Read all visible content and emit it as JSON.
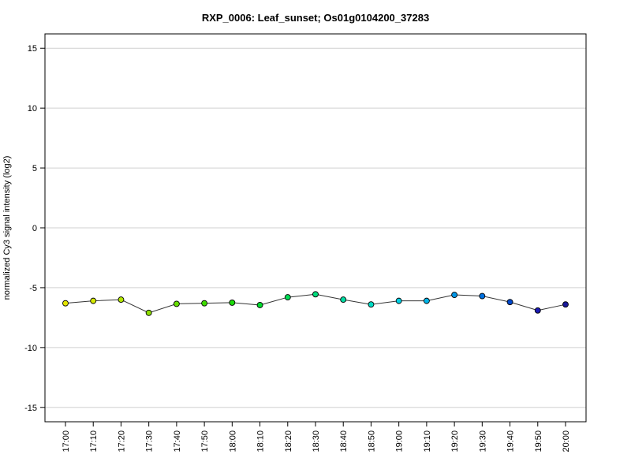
{
  "chart_data": {
    "type": "line",
    "title": "RXP_0006: Leaf_sunset; Os01g0104200_37283",
    "xlabel": "",
    "ylabel": "normalized Cy3 signal intensity (log2)",
    "ylim": [
      -16.2,
      16.2
    ],
    "yticks": [
      -15,
      -10,
      -5,
      0,
      5,
      10,
      15
    ],
    "grid": "horizontal",
    "categories": [
      "17:00",
      "17:10",
      "17:20",
      "17:30",
      "17:40",
      "17:50",
      "18:00",
      "18:10",
      "18:20",
      "18:30",
      "18:40",
      "18:50",
      "19:00",
      "19:10",
      "19:20",
      "19:30",
      "19:40",
      "19:50",
      "20:00"
    ],
    "series": [
      {
        "values": [
          -6.3,
          -6.1,
          -6.0,
          -7.1,
          -6.35,
          -6.3,
          -6.25,
          -6.45,
          -5.8,
          -5.55,
          -6.0,
          -6.4,
          -6.1,
          -6.1,
          -5.6,
          -5.7,
          -6.2,
          -6.9,
          -6.4
        ],
        "point_colors": [
          "#e5e600",
          "#d6ea00",
          "#b3e600",
          "#8fe000",
          "#66dd00",
          "#3ddc00",
          "#1cdc0a",
          "#00dc2e",
          "#00dc55",
          "#00dc7d",
          "#00dca3",
          "#00dcc6",
          "#00d2e6",
          "#00b6ea",
          "#0096e6",
          "#0071e0",
          "#0048cc",
          "#1a1ab3",
          "#1a1a99"
        ]
      }
    ]
  }
}
